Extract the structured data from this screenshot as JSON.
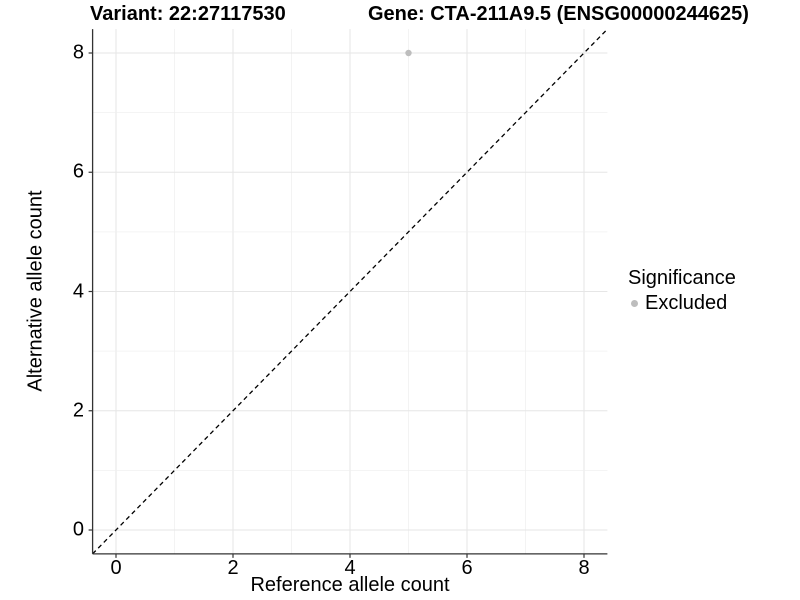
{
  "header": {
    "variant_title": "Variant: 22:27117530",
    "gene_title": "Gene: CTA-211A9.5 (ENSG00000244625)"
  },
  "chart_data": {
    "type": "scatter",
    "xlabel": "Reference allele count",
    "ylabel": "Alternative allele count",
    "xlim": [
      -0.4,
      8.4
    ],
    "ylim": [
      -0.4,
      8.4
    ],
    "x_ticks": [
      0,
      2,
      4,
      6,
      8
    ],
    "y_ticks": [
      0,
      2,
      4,
      6,
      8
    ],
    "grid": {
      "visible": true,
      "spacing": 1,
      "major_every": 2
    },
    "series": [
      {
        "name": "Excluded",
        "color": "#bdbdbd",
        "points": [
          {
            "x": 5,
            "y": 8
          }
        ],
        "point_radius": 3.2
      }
    ],
    "reference_line": {
      "kind": "identity y=x",
      "style": "dashed",
      "color": "#000000"
    },
    "legend": {
      "title": "Significance",
      "position": "right",
      "entries": [
        {
          "label": "Excluded",
          "color": "#bdbdbd"
        }
      ]
    }
  },
  "colors": {
    "background": "#ffffff",
    "axis_line": "#333333",
    "grid_major": "#e6e6e6",
    "grid_minor": "#f0f0f0",
    "text": "#000000"
  }
}
